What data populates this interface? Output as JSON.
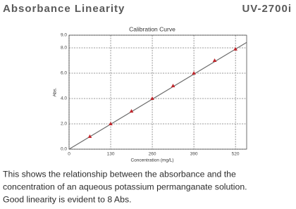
{
  "header": {
    "title": "Absorbance Linearity",
    "model": "UV-2700i"
  },
  "chart_data": {
    "type": "scatter",
    "title": "Calibration Curve",
    "x_label": "Concentration (mg/L)",
    "y_label": "Abs.",
    "xlim": [
      0,
      555
    ],
    "ylim": [
      0,
      9
    ],
    "xticks": [
      0,
      130,
      260,
      390,
      520
    ],
    "yticks": [
      {
        "value": 0,
        "label": "0.0"
      },
      {
        "value": 2,
        "label": "2.0"
      },
      {
        "value": 4,
        "label": "4.0"
      },
      {
        "value": 6,
        "label": "6.0"
      },
      {
        "value": 8,
        "label": "8.0"
      },
      {
        "value": 9,
        "label": "9.0"
      }
    ],
    "grid": true,
    "series": [
      {
        "type": "line",
        "color": "#6b6b6b",
        "x": [
          0,
          555
        ],
        "values": [
          0,
          8.43
        ]
      },
      {
        "type": "scatter",
        "color": "#c0272d",
        "x": [
          65,
          130,
          195,
          260,
          325,
          390,
          455,
          520
        ],
        "values": [
          1.0,
          2.0,
          3.0,
          4.0,
          5.0,
          6.0,
          7.0,
          7.9
        ]
      }
    ]
  },
  "caption": [
    "This shows the relationship between the absorbance and the",
    "concentration of an aqueous potassium permanganate solution.",
    "Good linearity is evident to 8 Abs."
  ]
}
